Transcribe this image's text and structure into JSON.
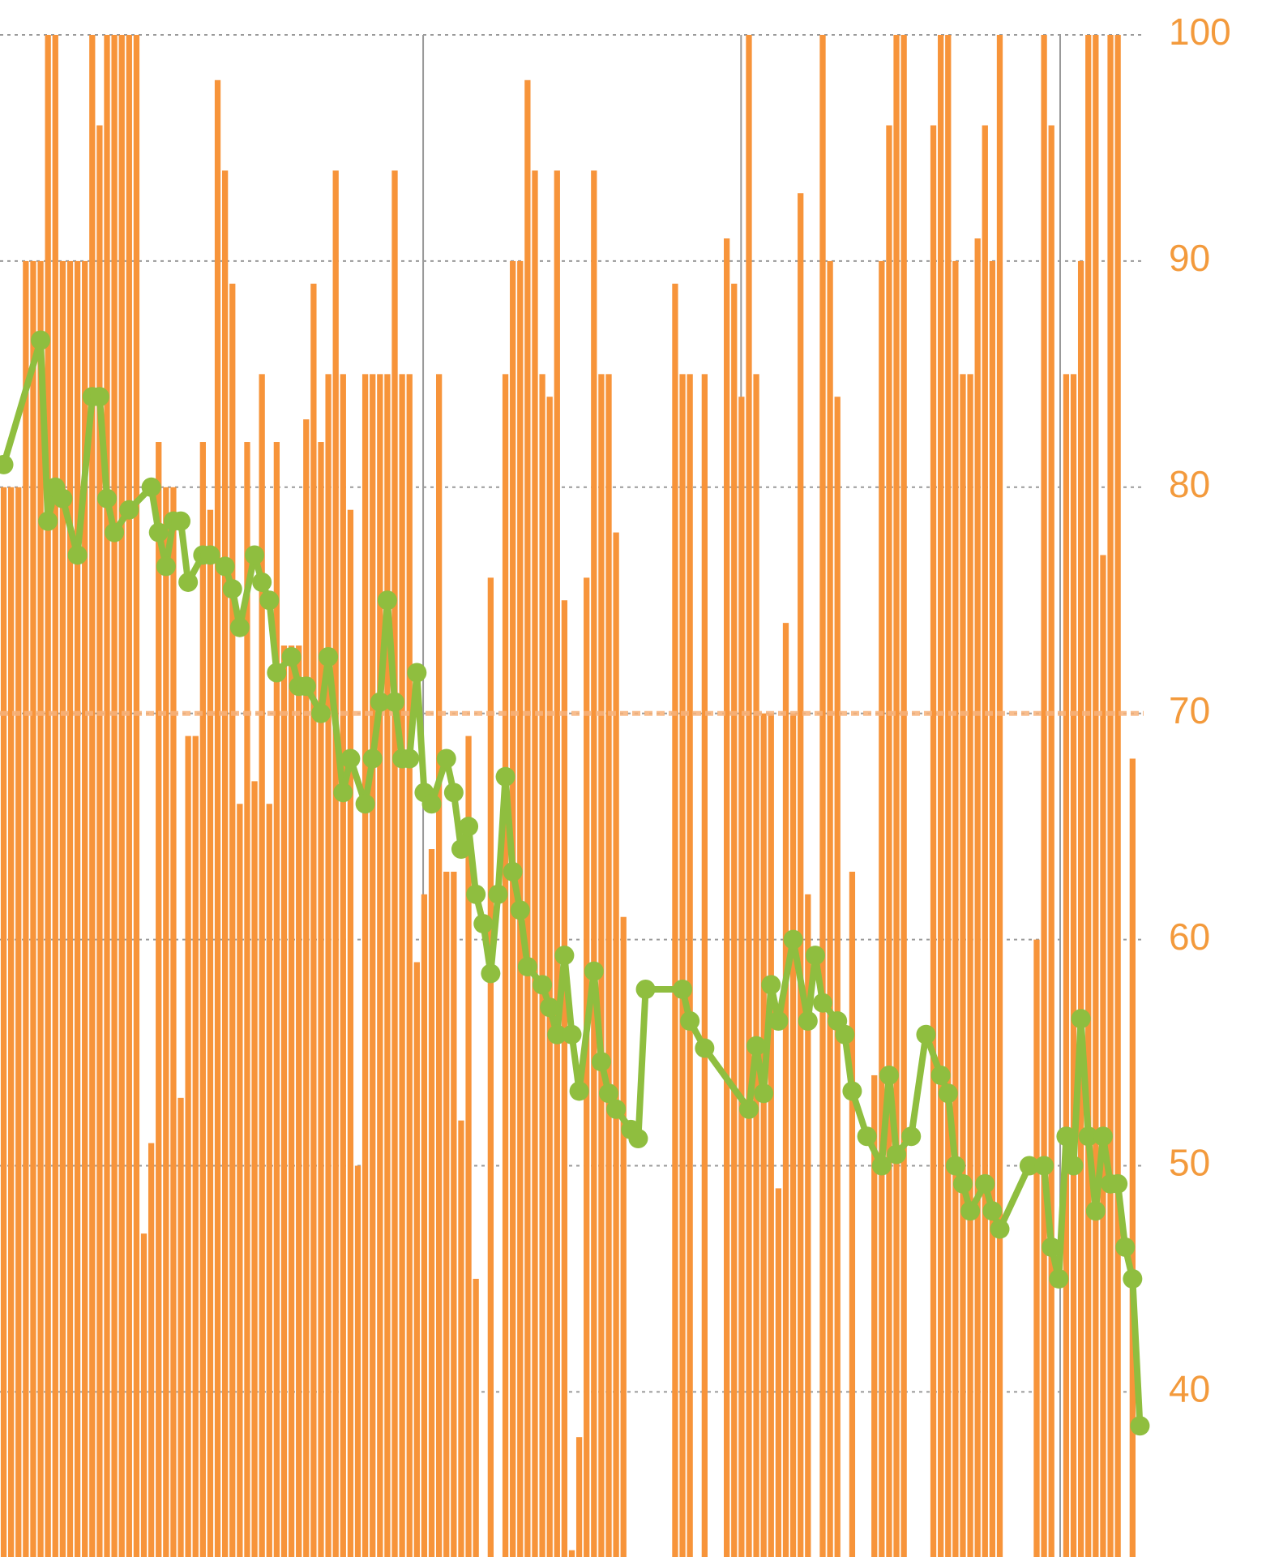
{
  "chart_data": {
    "type": "bar",
    "ylim": [
      32.7,
      100
    ],
    "yticks": [
      40,
      50,
      60,
      70,
      80,
      90,
      100
    ],
    "grid": true,
    "target": 70,
    "target_color": "#f7b27a",
    "series": [
      {
        "type": "bar",
        "color": "#f7943a",
        "values": [
          80,
          80,
          80,
          90,
          90,
          90,
          100,
          100,
          90,
          90,
          90,
          90,
          100,
          96,
          100,
          100,
          100,
          100,
          100,
          47,
          51,
          82,
          80,
          80,
          53,
          69,
          69,
          82,
          79,
          98,
          94,
          89,
          66,
          82,
          67,
          85,
          66,
          82,
          73,
          73,
          73,
          83,
          89,
          82,
          85,
          94,
          85,
          79,
          50,
          85,
          85,
          85,
          85,
          94,
          85,
          85,
          59,
          62,
          64,
          85,
          63,
          63,
          52,
          69,
          45,
          null,
          76,
          null,
          85,
          90,
          90,
          98,
          94,
          85,
          84,
          94,
          75,
          33,
          38,
          76,
          94,
          85,
          85,
          78,
          61,
          null,
          null,
          null,
          null,
          null,
          null,
          89,
          85,
          85,
          null,
          85,
          null,
          null,
          91,
          89,
          84,
          100,
          85,
          70,
          70,
          49,
          74,
          70,
          93,
          62,
          null,
          100,
          90,
          84,
          null,
          63,
          null,
          null,
          54,
          90,
          96,
          100,
          100,
          null,
          null,
          null,
          96,
          100,
          100,
          90,
          85,
          85,
          91,
          96,
          90,
          100,
          null,
          null,
          null,
          null,
          60,
          100,
          96,
          null,
          85,
          85,
          90,
          100,
          100,
          77,
          100,
          100,
          null,
          68,
          null
        ]
      },
      {
        "type": "line",
        "color": "#8fbe3f",
        "values": [
          81,
          null,
          null,
          null,
          null,
          86.5,
          78.5,
          80,
          79.5,
          null,
          77,
          null,
          84,
          84,
          79.5,
          78,
          null,
          79,
          null,
          null,
          80,
          78,
          76.5,
          78.5,
          78.5,
          75.8,
          null,
          77,
          77,
          null,
          76.5,
          75.5,
          73.8,
          null,
          77,
          75.8,
          75,
          71.8,
          null,
          72.5,
          71.2,
          71.2,
          null,
          70,
          72.5,
          null,
          66.5,
          68,
          null,
          66,
          68,
          70.5,
          75,
          70.5,
          68,
          68,
          71.8,
          66.5,
          66,
          null,
          68,
          66.5,
          64,
          65,
          62,
          60.7,
          58.5,
          62,
          67.2,
          63,
          61.3,
          58.8,
          null,
          58,
          57,
          55.8,
          59.3,
          55.8,
          53.3,
          null,
          58.6,
          54.6,
          53.2,
          52.5,
          null,
          51.6,
          51.2,
          57.8,
          null,
          null,
          null,
          null,
          57.8,
          56.4,
          null,
          55.2,
          null,
          null,
          null,
          null,
          null,
          52.5,
          55.3,
          53.2,
          58,
          56.4,
          null,
          60,
          null,
          56.4,
          59.3,
          57.2,
          null,
          56.4,
          55.8,
          53.3,
          null,
          51.3,
          null,
          50,
          54,
          50.5,
          null,
          51.3,
          null,
          55.8,
          null,
          54,
          53.2,
          50,
          49.2,
          48,
          null,
          49.2,
          48,
          47.2,
          null,
          null,
          null,
          50,
          null,
          50,
          46.4,
          45,
          51.3,
          50,
          56.5,
          51.3,
          48,
          51.3,
          49.2,
          49.2,
          46.4,
          45,
          38.5
        ]
      }
    ]
  }
}
